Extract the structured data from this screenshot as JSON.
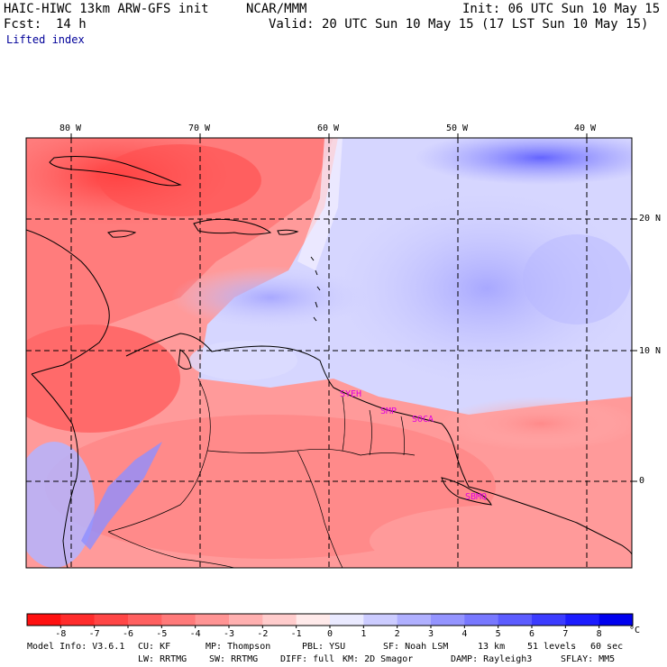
{
  "header": {
    "title": "HAIC-HIWC 13km ARW-GFS init",
    "org": "NCAR/MMM",
    "init": "Init: 06 UTC Sun 10 May 15",
    "fcst_label": "Fcst:",
    "fcst_value": "14 h",
    "valid": "Valid: 20 UTC Sun 10 May 15 (17 LST Sun 10 May 15)",
    "field": "Lifted index"
  },
  "map": {
    "lon_labels": [
      "80 W",
      "70 W",
      "60 W",
      "50 W",
      "40 W"
    ],
    "lat_labels": [
      "20 N",
      "10 N",
      "0"
    ],
    "stations": [
      "SYEH",
      "SMP",
      "SOCA",
      "SBMQ"
    ],
    "colors": {
      "station": "#e000e0",
      "coast": "#000000",
      "grid": "#000000"
    }
  },
  "colorbar": {
    "labels": [
      "-8",
      "-7",
      "-6",
      "-5",
      "-4",
      "-3",
      "-2",
      "-1",
      "0",
      "1",
      "2",
      "3",
      "4",
      "5",
      "6",
      "7",
      "8"
    ],
    "unit": "°C",
    "colors": [
      "#ff1010",
      "#ff2c2c",
      "#ff4646",
      "#ff6060",
      "#ff7a7a",
      "#ff9494",
      "#ffb0b0",
      "#ffcccc",
      "#ffeaea",
      "#eaeaff",
      "#ccccff",
      "#b0b0ff",
      "#9494ff",
      "#7878ff",
      "#5c5cff",
      "#3c3cff",
      "#1c1cff",
      "#0000ee"
    ]
  },
  "footer": {
    "line1": [
      "Model Info: V3.6.1",
      "CU: KF",
      "MP: Thompson",
      "PBL: YSU",
      "SF: Noah LSM",
      "13 km",
      "51 levels",
      "60 sec"
    ],
    "line2": [
      "LW: RRTMG",
      "SW: RRTMG",
      "DIFF: full",
      "KM: 2D Smagor",
      "DAMP: Rayleigh3",
      "SFLAY: MM5"
    ]
  }
}
